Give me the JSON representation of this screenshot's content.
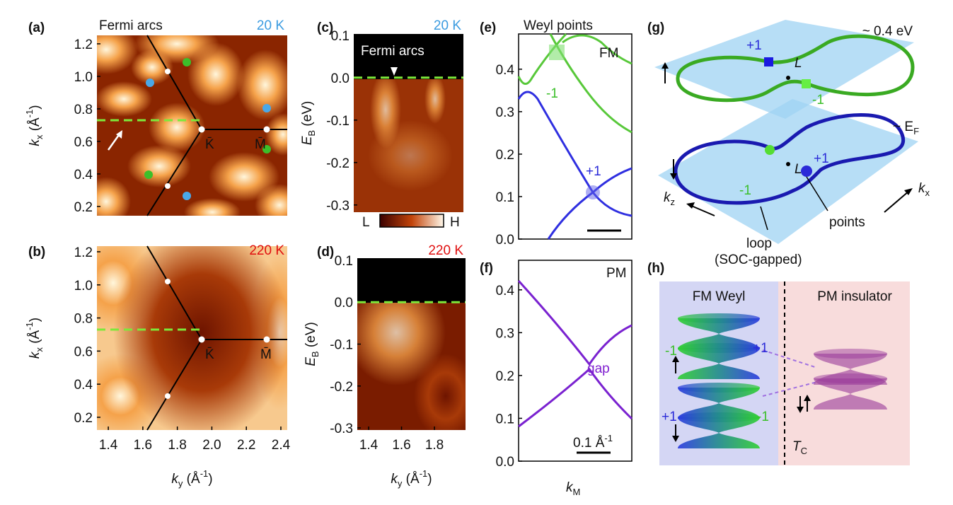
{
  "panel_labels": [
    "(a)",
    "(b)",
    "(c)",
    "(d)",
    "(e)",
    "(f)",
    "(g)",
    "(h)"
  ],
  "a": {
    "title": "Fermi arcs",
    "temperature": "20 K",
    "point_labels": [
      "K̄",
      "M̄"
    ],
    "cut_kx": 0.73,
    "xlim": [
      1.334,
      2.437
    ],
    "ylim": [
      0.143,
      1.252
    ],
    "yticks": [
      0.2,
      0.4,
      0.6,
      0.8,
      {
        "value": 1,
        "label": "1.0"
      },
      1.2
    ],
    "y_label": [
      "k",
      "x",
      " (Å",
      "-1",
      ")"
    ]
  },
  "b": {
    "temperature": "220 K",
    "point_labels": [
      "K̄",
      "M̄"
    ],
    "cut_kx": 0.73,
    "xlim": [
      1.334,
      2.437
    ],
    "ylim": [
      0.123,
      1.234
    ],
    "xticks": [
      1.4,
      1.6,
      1.8,
      {
        "value": 2,
        "label": "2.0"
      },
      2.2,
      2.4
    ],
    "yticks": [
      0.2,
      0.4,
      0.6,
      0.8,
      {
        "value": 1,
        "label": "1.0"
      },
      1.2
    ],
    "x_label": [
      "k",
      "y",
      " (Å",
      "-1",
      ")"
    ],
    "y_label": [
      "k",
      "x",
      " (Å",
      "-1",
      ")"
    ]
  },
  "c": {
    "temperature": "20 K",
    "annotation": "Fermi arcs",
    "cut_energy": 0,
    "ylim": [
      -0.317,
      0.103
    ],
    "yticks": [
      0.1,
      {
        "value": 0,
        "label": "0.0"
      },
      -0.1,
      -0.2,
      -0.3
    ],
    "y_label": [
      "E",
      "B",
      " (eV)"
    ],
    "colorbar": [
      "L",
      "H"
    ]
  },
  "d": {
    "temperature": "220 K",
    "cut_energy": 0,
    "xlim": [
      1.331,
      1.989
    ],
    "ylim": [
      -0.305,
      0.105
    ],
    "xticks": [
      1.4,
      1.6,
      1.8
    ],
    "yticks": [
      0.1,
      {
        "value": 0,
        "label": "0.0"
      },
      -0.1,
      -0.2,
      -0.3
    ],
    "x_label": [
      "k",
      "y",
      " (Å",
      "-1",
      ")"
    ],
    "y_label": [
      "E",
      "B",
      " (eV)"
    ]
  },
  "e": {
    "title": "Weyl points",
    "phase": "FM",
    "charges": [
      "-1",
      "+1"
    ],
    "ylim": [
      0,
      0.483
    ],
    "yticks": [
      {
        "value": 0,
        "label": "0.0"
      },
      0.1,
      0.2,
      0.3,
      0.4
    ]
  },
  "f": {
    "phase": "PM",
    "annotation": "gap",
    "scale_bar": [
      "0.1 Å",
      "-1"
    ],
    "ylim": [
      0,
      0.469
    ],
    "yticks": [
      {
        "value": 0,
        "label": "0.0"
      },
      0.1,
      0.2,
      0.3,
      0.4
    ],
    "x_label": [
      "k",
      "M"
    ]
  },
  "g": {
    "upper_energy": "~ 0.4 eV",
    "lower_energy": [
      "~ E",
      "F"
    ],
    "point_label": "L",
    "upper_charges": [
      "+1",
      "-1"
    ],
    "lower_charges": [
      "-1",
      "+1"
    ],
    "axis_x": [
      "k",
      "x"
    ],
    "axis_z": [
      "k",
      "z"
    ],
    "annotations": [
      "points",
      "loop",
      "(SOC-gapped)"
    ]
  },
  "h": {
    "left_title": "FM Weyl",
    "right_title": "PM insulator",
    "charges": [
      "-1",
      "+1",
      "+1",
      "-1"
    ],
    "transition": [
      "T",
      "C"
    ]
  }
}
